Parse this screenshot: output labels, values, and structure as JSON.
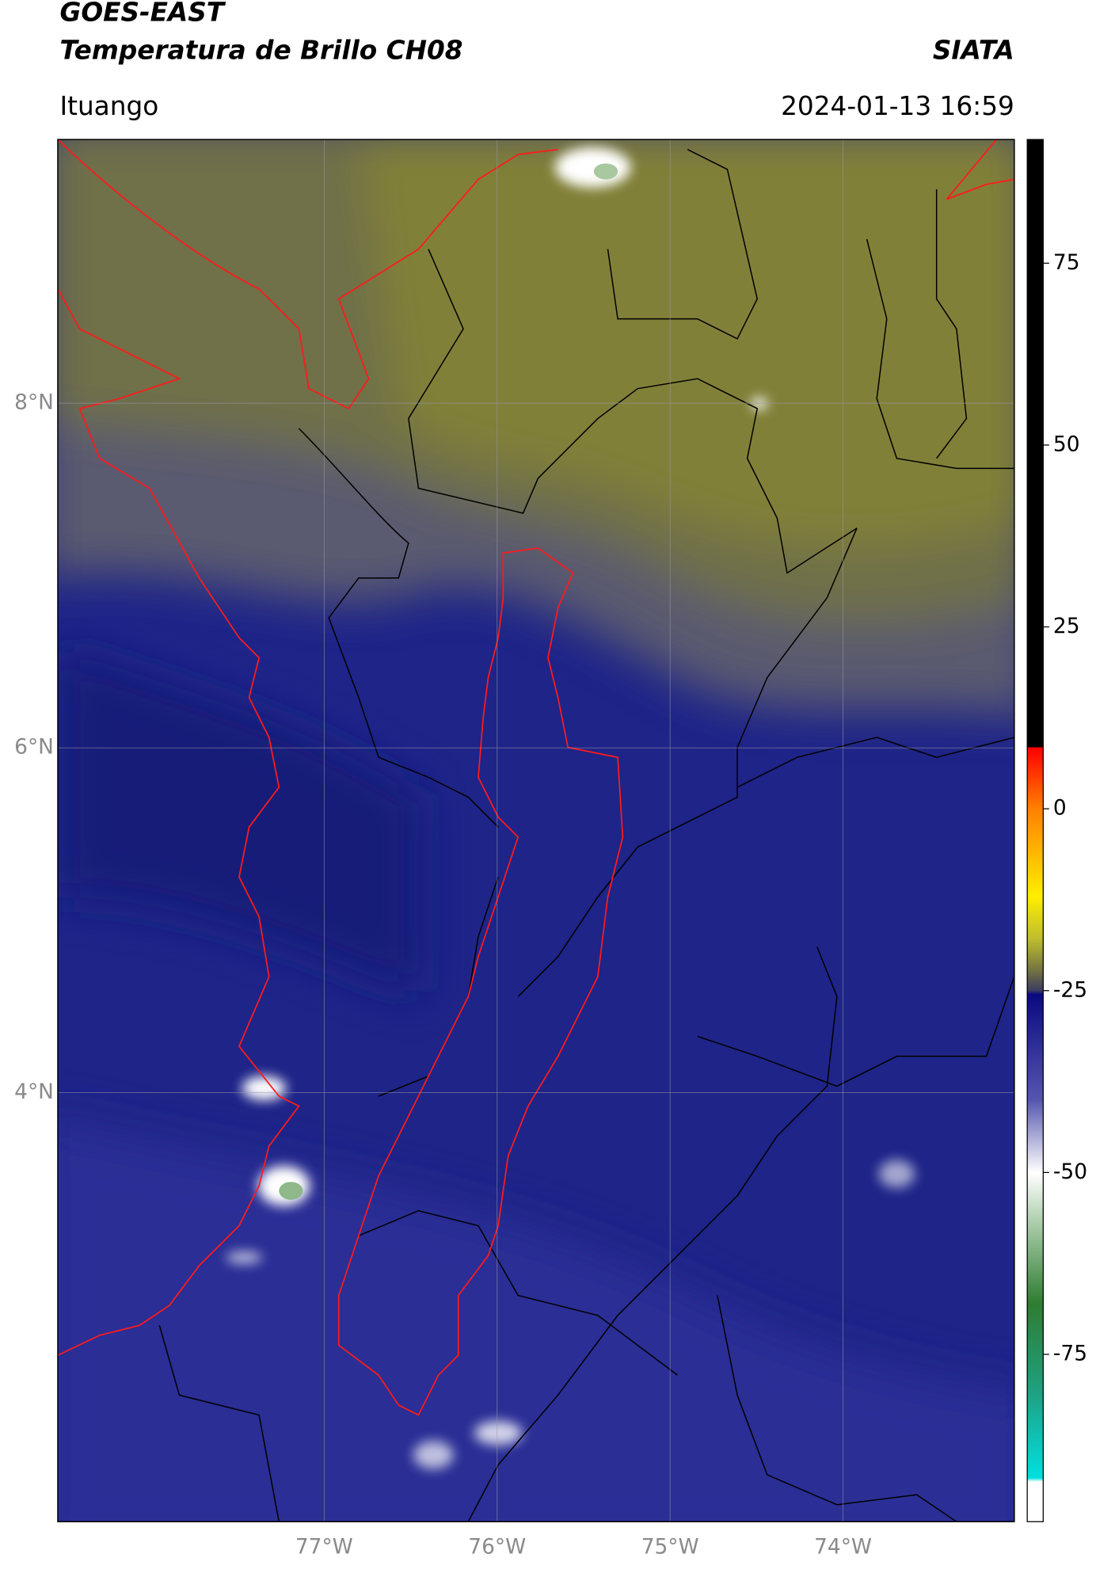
{
  "header": {
    "title": "GOES-EAST",
    "subtitle": "Temperatura de Brillo CH08",
    "brand": "SIATA",
    "location": "Ituango",
    "timestamp": "2024-01-13 16:59"
  },
  "chart_data": {
    "type": "map",
    "xlim": [
      -78.54,
      -73.01
    ],
    "ylim": [
      1.51,
      9.53
    ],
    "xticks": [
      {
        "value": -77,
        "label": "77°W"
      },
      {
        "value": -76,
        "label": "76°W"
      },
      {
        "value": -75,
        "label": "75°W"
      },
      {
        "value": -74,
        "label": "74°W"
      }
    ],
    "yticks": [
      {
        "value": 8,
        "label": "8°N"
      },
      {
        "value": 6,
        "label": "6°N"
      },
      {
        "value": 4,
        "label": "4°N"
      }
    ],
    "grid": true,
    "colorbar": {
      "lim": [
        -98,
        92
      ],
      "ticks": [
        75,
        50,
        25,
        0,
        -25,
        -50,
        -75
      ],
      "colormap": [
        {
          "value": 92,
          "color": "#000000"
        },
        {
          "value": 8.5,
          "color": "#000000"
        },
        {
          "value": 8.4,
          "color": "#ff0000"
        },
        {
          "value": 0,
          "color": "#ff8000"
        },
        {
          "value": -12,
          "color": "#ffee00"
        },
        {
          "value": -18,
          "color": "#bcbc30"
        },
        {
          "value": -22,
          "color": "#777740"
        },
        {
          "value": -25,
          "color": "#3c3c60"
        },
        {
          "value": -25.5,
          "color": "#0a0a80"
        },
        {
          "value": -40,
          "color": "#5555b0"
        },
        {
          "value": -50,
          "color": "#ffffff"
        },
        {
          "value": -58,
          "color": "#9fc59f"
        },
        {
          "value": -68,
          "color": "#2e7d32"
        },
        {
          "value": -80,
          "color": "#20a080"
        },
        {
          "value": -92,
          "color": "#00e0e0"
        },
        {
          "value": -92.5,
          "color": "#ffffff"
        },
        {
          "value": -98,
          "color": "#ffffff"
        }
      ]
    }
  }
}
